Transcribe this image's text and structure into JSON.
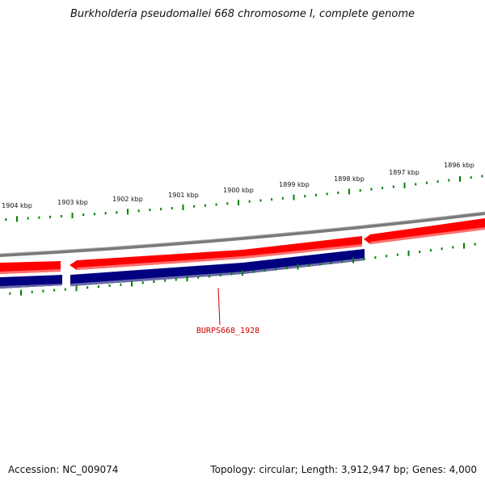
{
  "header": {
    "title": "Burkholderia pseudomallei 668 chromosome I, complete genome"
  },
  "footer": {
    "accession": "Accession: NC_009074",
    "summary": "Topology: circular; Length: 3,912,947 bp; Genes: 4,000"
  },
  "scale": {
    "ticks": [
      {
        "label": "1904 kbp"
      },
      {
        "label": "1903 kbp"
      },
      {
        "label": "1902 kbp"
      },
      {
        "label": "1901 kbp"
      },
      {
        "label": "1900 kbp"
      },
      {
        "label": "1899 kbp"
      },
      {
        "label": "1898 kbp"
      },
      {
        "label": "1897 kbp"
      },
      {
        "label": "1896 kbp"
      }
    ]
  },
  "features": {
    "gene_label": "BURPS668_1928",
    "colors": {
      "forward_strand": "#ff0000",
      "reverse_strand": "#000080",
      "backbone": "#808080",
      "tick": "#008000",
      "label": "#cc0000"
    }
  }
}
